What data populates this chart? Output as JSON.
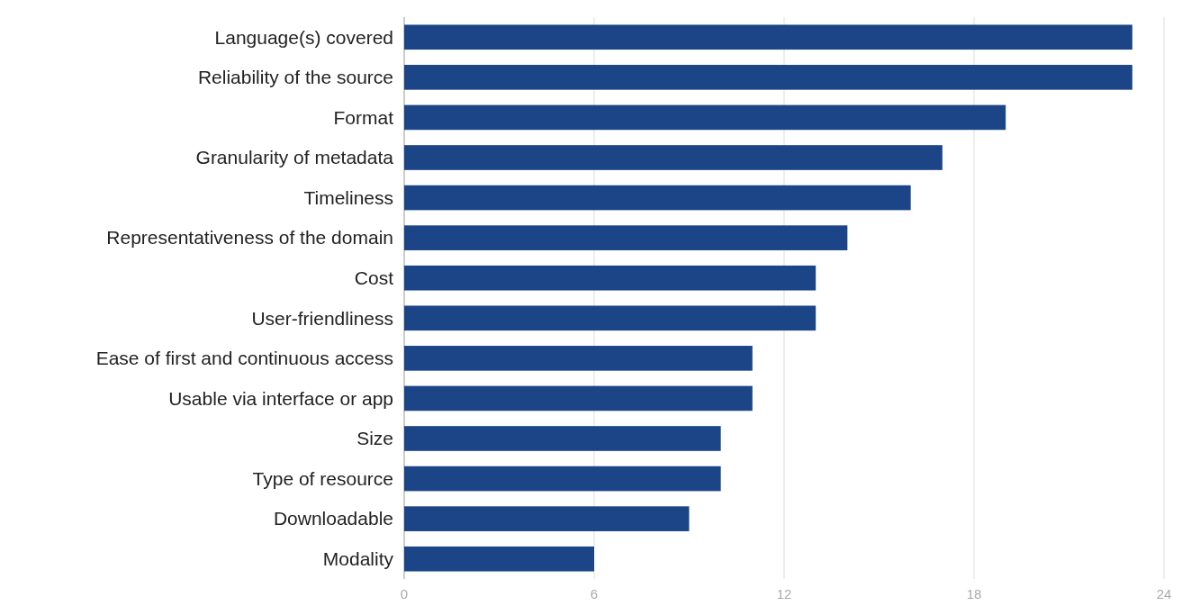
{
  "chart_data": {
    "type": "bar",
    "orientation": "horizontal",
    "categories": [
      "Language(s) covered",
      "Reliability of the source",
      "Format",
      "Granularity of metadata",
      "Timeliness",
      "Representativeness of the domain",
      "Cost",
      "User-friendliness",
      "Ease of first and continuous access",
      "Usable via interface or app",
      "Size",
      "Type of resource",
      "Downloadable",
      "Modality"
    ],
    "values": [
      23,
      23,
      19,
      17,
      16,
      14,
      13,
      13,
      11,
      11,
      10,
      10,
      9,
      6
    ],
    "color": "#1c4587",
    "xlim": [
      0,
      24
    ],
    "xticks": [
      0,
      6,
      12,
      18,
      24
    ],
    "grid": "x"
  }
}
